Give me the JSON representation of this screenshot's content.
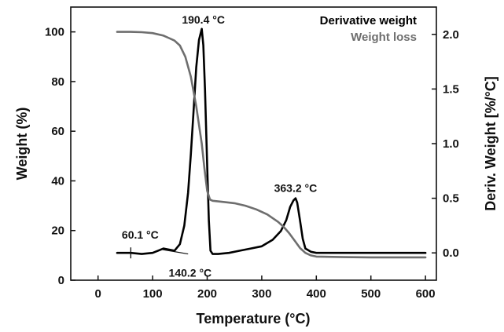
{
  "chart_data": {
    "type": "line",
    "xlabel": "Temperature (°C)",
    "ylabel": "Weight (%)",
    "y2label": "Deriv. Weight [%/°C]",
    "xlim": [
      -50,
      620
    ],
    "ylim": [
      0,
      110
    ],
    "y2lim": [
      -0.25,
      2.25
    ],
    "x_ticks": [
      0,
      100,
      200,
      300,
      400,
      500,
      600
    ],
    "y_ticks": [
      0,
      20,
      40,
      60,
      80,
      100
    ],
    "y2_ticks": [
      0.0,
      0.5,
      1.0,
      1.5,
      2.0
    ],
    "y2_tick_labels": [
      "0.0",
      "0.5",
      "1.0",
      "1.5",
      "2.0"
    ],
    "legend_position": "top-right",
    "series": [
      {
        "name": "Derivative weight",
        "color": "#000000",
        "axis": "right",
        "x": [
          35,
          60,
          80,
          100,
          110,
          120,
          130,
          140,
          150,
          158,
          165,
          170,
          175,
          180,
          185,
          190,
          193,
          196,
          200,
          203,
          206,
          210,
          220,
          240,
          260,
          280,
          300,
          320,
          335,
          345,
          352,
          358,
          362,
          365,
          370,
          375,
          380,
          390,
          400,
          450,
          500,
          550,
          600
        ],
        "y": [
          0.0,
          0.0,
          -0.01,
          0.0,
          0.02,
          0.04,
          0.03,
          0.02,
          0.08,
          0.25,
          0.55,
          0.9,
          1.3,
          1.7,
          1.95,
          2.05,
          1.9,
          1.5,
          0.8,
          0.3,
          0.02,
          -0.01,
          -0.01,
          0.0,
          0.02,
          0.04,
          0.06,
          0.12,
          0.2,
          0.3,
          0.42,
          0.48,
          0.5,
          0.46,
          0.3,
          0.13,
          0.04,
          0.01,
          0.0,
          0.0,
          0.0,
          0.0,
          0.0
        ]
      },
      {
        "name": "Weight loss",
        "color": "#6e6e6e",
        "axis": "left",
        "x": [
          35,
          60,
          80,
          100,
          120,
          130,
          140,
          150,
          160,
          170,
          180,
          190,
          195,
          200,
          205,
          210,
          230,
          250,
          270,
          290,
          310,
          330,
          340,
          350,
          360,
          370,
          380,
          390,
          400,
          450,
          500,
          550,
          600
        ],
        "y": [
          100,
          100,
          99.9,
          99.5,
          98.5,
          97.5,
          96.5,
          94.5,
          90,
          82,
          70,
          55,
          45,
          36,
          32.5,
          32,
          31.5,
          31,
          30,
          28.5,
          26.5,
          23.5,
          21.5,
          19,
          16,
          13,
          11,
          10,
          9.5,
          9.3,
          9.2,
          9.2,
          9.2
        ]
      }
    ],
    "annotations": [
      {
        "text": "190.4 °C",
        "x": 193,
        "y2": 2.1
      },
      {
        "text": "363.2 °C",
        "x": 362,
        "y2": 0.53
      },
      {
        "text": "60.1 °C",
        "x": 60,
        "y2": 0.06
      },
      {
        "text": "140.2 °C",
        "x": 140,
        "y2": -0.06
      }
    ]
  }
}
